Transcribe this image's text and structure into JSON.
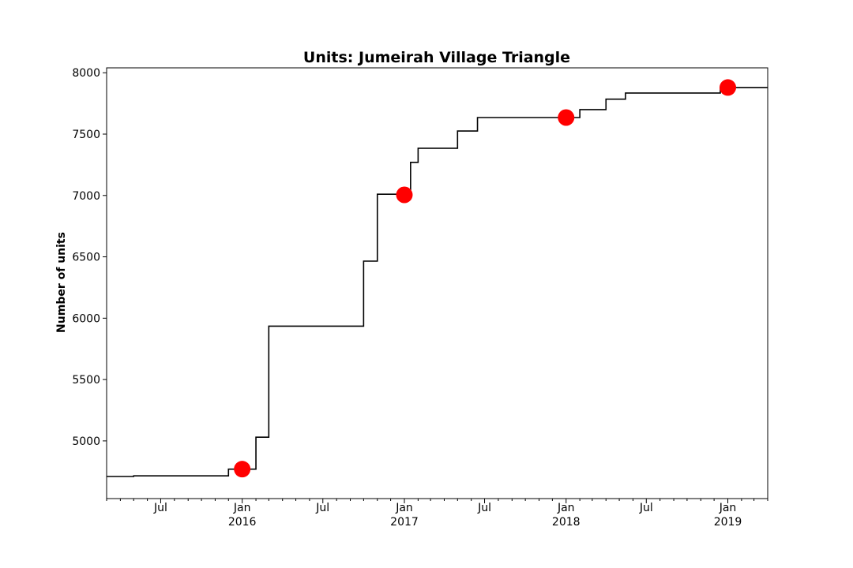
{
  "chart_data": {
    "type": "line",
    "title": "Units: Jumeirah Village Triangle",
    "xlabel": "",
    "ylabel": "Number of units",
    "xlim": [
      "2015-03-01",
      "2019-04-01"
    ],
    "ylim": [
      4530,
      8040
    ],
    "y_ticks": [
      5000,
      5500,
      6000,
      6500,
      7000,
      7500,
      8000
    ],
    "x_ticks": [
      {
        "date": "2015-07-01",
        "label": "Jul",
        "sublabel": ""
      },
      {
        "date": "2016-01-01",
        "label": "Jan",
        "sublabel": "2016"
      },
      {
        "date": "2016-07-01",
        "label": "Jul",
        "sublabel": ""
      },
      {
        "date": "2017-01-01",
        "label": "Jan",
        "sublabel": "2017"
      },
      {
        "date": "2017-07-01",
        "label": "Jul",
        "sublabel": ""
      },
      {
        "date": "2018-01-01",
        "label": "Jan",
        "sublabel": "2018"
      },
      {
        "date": "2018-07-01",
        "label": "Jul",
        "sublabel": ""
      },
      {
        "date": "2019-01-01",
        "label": "Jan",
        "sublabel": "2019"
      }
    ],
    "grid": false,
    "series": [
      {
        "style": "step",
        "color": "#000000",
        "points": [
          [
            "2015-03-01",
            4710
          ],
          [
            "2015-05-01",
            4715
          ],
          [
            "2015-12-01",
            4770
          ],
          [
            "2016-02-01",
            5030
          ],
          [
            "2016-03-01",
            5935
          ],
          [
            "2016-10-01",
            6465
          ],
          [
            "2016-11-01",
            7010
          ],
          [
            "2017-01-15",
            7270
          ],
          [
            "2017-02-01",
            7385
          ],
          [
            "2017-05-01",
            7525
          ],
          [
            "2017-06-15",
            7635
          ],
          [
            "2018-02-01",
            7700
          ],
          [
            "2018-04-01",
            7785
          ],
          [
            "2018-05-15",
            7835
          ],
          [
            "2018-12-15",
            7880
          ],
          [
            "2019-04-01",
            7880
          ]
        ]
      },
      {
        "style": "markers",
        "color": "#ff0000",
        "points": [
          [
            "2016-01-01",
            4770
          ],
          [
            "2017-01-01",
            7005
          ],
          [
            "2018-01-01",
            7635
          ],
          [
            "2019-01-01",
            7880
          ]
        ]
      }
    ]
  }
}
